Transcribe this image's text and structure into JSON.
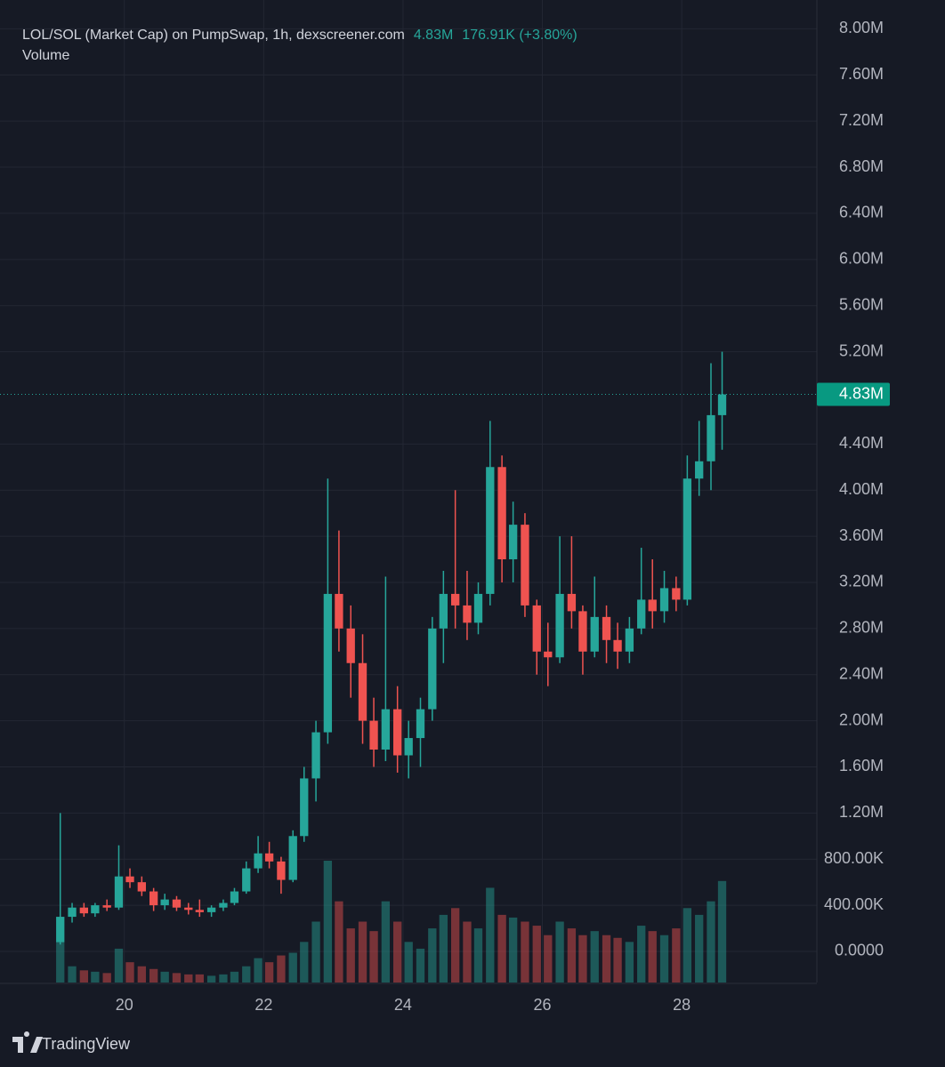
{
  "header": {
    "title": "LOL/SOL (Market Cap) on PumpSwap, 1h, dexscreener.com",
    "price": "4.83M",
    "change": "176.91K (+3.80%)",
    "volume_label": "Volume"
  },
  "footer": {
    "brand": "TradingView"
  },
  "chart_data": {
    "type": "candlestick",
    "grid": true,
    "up_color": "#26a69a",
    "down_color": "#ef5350",
    "last_label": "4.83M",
    "xlim": [
      18.215,
      29.94
    ],
    "xticks": [
      20,
      22,
      24,
      26,
      28
    ],
    "ylim": [
      -270000,
      8250000
    ],
    "yticks": [
      {
        "value": 0,
        "label": "0.0000"
      },
      {
        "value": 400000,
        "label": "400.00K"
      },
      {
        "value": 800000,
        "label": "800.00K"
      },
      {
        "value": 1200000,
        "label": "1.20M"
      },
      {
        "value": 1600000,
        "label": "1.60M"
      },
      {
        "value": 2000000,
        "label": "2.00M"
      },
      {
        "value": 2400000,
        "label": "2.40M"
      },
      {
        "value": 2800000,
        "label": "2.80M"
      },
      {
        "value": 3200000,
        "label": "3.20M"
      },
      {
        "value": 3600000,
        "label": "3.60M"
      },
      {
        "value": 4000000,
        "label": "4.00M"
      },
      {
        "value": 4400000,
        "label": "4.40M"
      },
      {
        "value": 5200000,
        "label": "5.20M"
      },
      {
        "value": 5600000,
        "label": "5.60M"
      },
      {
        "value": 6000000,
        "label": "6.00M"
      },
      {
        "value": 6400000,
        "label": "6.40M"
      },
      {
        "value": 6800000,
        "label": "6.80M"
      },
      {
        "value": 7200000,
        "label": "7.20M"
      },
      {
        "value": 7600000,
        "label": "7.60M"
      },
      {
        "value": 8000000,
        "label": "8.00M"
      }
    ],
    "x": [
      19.08,
      19.25,
      19.42,
      19.58,
      19.75,
      19.92,
      20.08,
      20.25,
      20.42,
      20.58,
      20.75,
      20.92,
      21.08,
      21.25,
      21.42,
      21.58,
      21.75,
      21.92,
      22.08,
      22.25,
      22.42,
      22.58,
      22.75,
      22.92,
      23.08,
      23.25,
      23.42,
      23.58,
      23.75,
      23.92,
      24.08,
      24.25,
      24.42,
      24.58,
      24.75,
      24.92,
      25.08,
      25.25,
      25.42,
      25.58,
      25.75,
      25.92,
      26.08,
      26.25,
      26.42,
      26.58,
      26.75,
      26.92,
      27.08,
      27.25,
      27.42,
      27.58,
      27.75,
      27.92,
      28.08,
      28.25,
      28.42,
      28.58
    ],
    "open": [
      80000,
      300000,
      380000,
      330000,
      400000,
      380000,
      650000,
      600000,
      520000,
      400000,
      450000,
      380000,
      360000,
      340000,
      380000,
      420000,
      520000,
      720000,
      850000,
      780000,
      620000,
      1000000,
      1500000,
      1900000,
      3100000,
      2800000,
      2500000,
      2000000,
      1750000,
      2100000,
      1700000,
      1850000,
      2100000,
      2800000,
      3100000,
      3000000,
      2850000,
      3100000,
      4200000,
      3400000,
      3700000,
      3000000,
      2600000,
      2550000,
      3100000,
      2950000,
      2600000,
      2900000,
      2700000,
      2600000,
      2800000,
      3050000,
      2950000,
      3150000,
      3050000,
      4100000,
      4250000,
      4650000
    ],
    "high": [
      1200000,
      420000,
      420000,
      420000,
      450000,
      920000,
      720000,
      650000,
      550000,
      500000,
      480000,
      420000,
      450000,
      400000,
      450000,
      550000,
      780000,
      1000000,
      950000,
      820000,
      1050000,
      1600000,
      2000000,
      4100000,
      3650000,
      3000000,
      2750000,
      2200000,
      3250000,
      2300000,
      2000000,
      2200000,
      2900000,
      3300000,
      4000000,
      3300000,
      3200000,
      4600000,
      4300000,
      3900000,
      3800000,
      3050000,
      2850000,
      3600000,
      3600000,
      3000000,
      3250000,
      3000000,
      2850000,
      2900000,
      3500000,
      3400000,
      3300000,
      3250000,
      4300000,
      4600000,
      5100000,
      5200000
    ],
    "low": [
      60000,
      250000,
      300000,
      300000,
      350000,
      360000,
      550000,
      480000,
      350000,
      360000,
      350000,
      320000,
      300000,
      300000,
      350000,
      400000,
      500000,
      680000,
      720000,
      500000,
      600000,
      950000,
      1300000,
      1800000,
      2600000,
      2200000,
      1800000,
      1600000,
      1650000,
      1550000,
      1500000,
      1600000,
      2000000,
      2500000,
      2800000,
      2700000,
      2750000,
      3000000,
      3200000,
      3200000,
      2900000,
      2400000,
      2300000,
      2500000,
      2800000,
      2400000,
      2550000,
      2500000,
      2450000,
      2500000,
      2750000,
      2800000,
      2850000,
      2950000,
      3000000,
      3950000,
      4000000,
      4350000
    ],
    "close": [
      300000,
      380000,
      330000,
      400000,
      380000,
      650000,
      600000,
      520000,
      400000,
      450000,
      380000,
      360000,
      340000,
      380000,
      420000,
      520000,
      720000,
      850000,
      780000,
      620000,
      1000000,
      1500000,
      1900000,
      3100000,
      2800000,
      2500000,
      2000000,
      1750000,
      2100000,
      1700000,
      1850000,
      2100000,
      2800000,
      3100000,
      3000000,
      2850000,
      3100000,
      4200000,
      3400000,
      3700000,
      3000000,
      2600000,
      2550000,
      3100000,
      2950000,
      2600000,
      2900000,
      2700000,
      2600000,
      2800000,
      3050000,
      2950000,
      3150000,
      3050000,
      4100000,
      4250000,
      4650000,
      4830000
    ],
    "volume": [
      300000,
      120000,
      90000,
      80000,
      70000,
      250000,
      150000,
      120000,
      100000,
      80000,
      70000,
      60000,
      60000,
      50000,
      60000,
      80000,
      120000,
      180000,
      150000,
      200000,
      220000,
      300000,
      450000,
      900000,
      600000,
      400000,
      450000,
      380000,
      600000,
      450000,
      300000,
      250000,
      400000,
      500000,
      550000,
      450000,
      400000,
      700000,
      500000,
      480000,
      450000,
      420000,
      350000,
      450000,
      400000,
      350000,
      380000,
      350000,
      330000,
      300000,
      420000,
      380000,
      350000,
      400000,
      550000,
      500000,
      600000,
      750000
    ]
  }
}
